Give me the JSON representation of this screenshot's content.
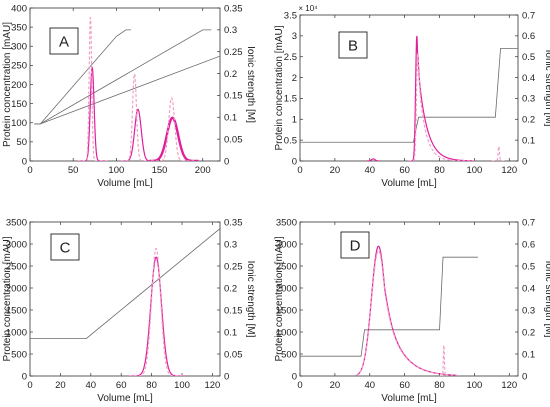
{
  "colors": {
    "gradient_line": "#6b6b6b",
    "peak_solid": "#e0209a",
    "peak_dashed": "#f0a0c8",
    "axis": "#333333"
  },
  "chart_data": [
    {
      "panel": "A",
      "type": "line",
      "xlabel": "Volume [mL]",
      "ylabel": "Protein concentration [mAU]",
      "y2label": "Ionic strength [M]",
      "xlim": [
        0,
        220
      ],
      "ylim": [
        0,
        400
      ],
      "y2lim": [
        0,
        0.35
      ],
      "xticks": [
        0,
        50,
        100,
        150,
        200
      ],
      "yticks": [
        0,
        50,
        100,
        150,
        200,
        250,
        300,
        350,
        400
      ],
      "y2ticks": [
        0,
        0.05,
        0.1,
        0.15,
        0.2,
        0.25,
        0.3,
        0.35
      ],
      "yexponent": "",
      "gradients": [
        {
          "style": "solid",
          "points": [
            [
              5,
              0.085
            ],
            [
              12,
              0.085
            ],
            [
              100,
              0.285
            ],
            [
              111,
              0.3
            ],
            [
              117,
              0.3
            ]
          ]
        },
        {
          "style": "solid",
          "points": [
            [
              5,
              0.085
            ],
            [
              12,
              0.085
            ],
            [
              200,
              0.3
            ],
            [
              210,
              0.3
            ]
          ]
        },
        {
          "style": "solid",
          "points": [
            [
              5,
              0.085
            ],
            [
              12,
              0.085
            ],
            [
              220,
              0.24
            ]
          ]
        }
      ],
      "peaks": [
        {
          "style": "solid",
          "width": 1.2,
          "center": 72,
          "height": 245,
          "sigma": 2.2,
          "xmin": 55,
          "xmax": 90
        },
        {
          "style": "dashed",
          "width": 1.2,
          "center": 70,
          "height": 375,
          "sigma": 1.5,
          "xmin": 55,
          "xmax": 90
        },
        {
          "style": "solid",
          "width": 1.2,
          "center": 125,
          "height": 135,
          "sigma": 3.8,
          "xmin": 105,
          "xmax": 145
        },
        {
          "style": "dashed",
          "width": 1.2,
          "center": 121,
          "height": 228,
          "sigma": 2.3,
          "xmin": 105,
          "xmax": 145
        },
        {
          "style": "solid",
          "width": 2.4,
          "center": 165,
          "height": 113,
          "sigma": 6.5,
          "xmin": 138,
          "xmax": 195
        },
        {
          "style": "dashed",
          "width": 1.2,
          "center": 164,
          "height": 165,
          "sigma": 3.5,
          "xmin": 140,
          "xmax": 190
        }
      ]
    },
    {
      "panel": "B",
      "type": "line",
      "xlabel": "Volume [mL]",
      "ylabel": "Protein concentration [mAU]",
      "y2label": "Ionic strength [M]",
      "xlim": [
        0,
        125
      ],
      "ylim": [
        0,
        35000
      ],
      "y2lim": [
        0,
        0.7
      ],
      "xticks": [
        0,
        20,
        40,
        60,
        80,
        100,
        120
      ],
      "yticks": [
        0,
        5000,
        10000,
        15000,
        20000,
        25000,
        30000,
        35000
      ],
      "ytick_labels": [
        "0",
        "0.5",
        "1",
        "1.5",
        "2",
        "2.5",
        "3",
        "3.5"
      ],
      "y2ticks": [
        0,
        0.1,
        0.2,
        0.3,
        0.4,
        0.5,
        0.6,
        0.7
      ],
      "yexponent": "× 10⁴",
      "gradients": [
        {
          "style": "solid",
          "points": [
            [
              0,
              0.09
            ],
            [
              65,
              0.09
            ],
            [
              68,
              0.21
            ],
            [
              112,
              0.21
            ],
            [
              115,
              0.54
            ],
            [
              125,
              0.54
            ]
          ]
        }
      ],
      "peaks": [
        {
          "style": "solid",
          "width": 1.2,
          "center": 67,
          "height": 30000,
          "sigma": 0.7,
          "tail": 5,
          "xmin": 62,
          "xmax": 100
        },
        {
          "style": "dashed",
          "width": 1.2,
          "center": 67.5,
          "height": 26000,
          "sigma": 0.7,
          "tail": 4,
          "xmin": 62,
          "xmax": 100
        },
        {
          "style": "dashed",
          "width": 1.2,
          "center": 114,
          "height": 3500,
          "sigma": 0.4,
          "xmin": 110,
          "xmax": 118
        },
        {
          "style": "solid",
          "width": 1.2,
          "center": 42,
          "height": 500,
          "sigma": 1.0,
          "xmin": 38,
          "xmax": 46
        }
      ]
    },
    {
      "panel": "C",
      "type": "line",
      "xlabel": "Volume [mL]",
      "ylabel": "Protein concentration [mAU]",
      "y2label": "Ionic strength [M]",
      "xlim": [
        0,
        125
      ],
      "ylim": [
        0,
        3500
      ],
      "y2lim": [
        0,
        0.35
      ],
      "xticks": [
        0,
        20,
        40,
        60,
        80,
        100,
        120
      ],
      "yticks": [
        0,
        500,
        1000,
        1500,
        2000,
        2500,
        3000,
        3500
      ],
      "y2ticks": [
        0,
        0.05,
        0.1,
        0.15,
        0.2,
        0.25,
        0.3,
        0.35
      ],
      "yexponent": "",
      "gradients": [
        {
          "style": "solid",
          "points": [
            [
              0,
              0.085
            ],
            [
              37,
              0.085
            ],
            [
              125,
              0.335
            ]
          ]
        }
      ],
      "peaks": [
        {
          "style": "solid",
          "width": 1.2,
          "center": 83,
          "height": 2700,
          "sigma": 3.5,
          "xmin": 65,
          "xmax": 102
        },
        {
          "style": "dashed",
          "width": 1.2,
          "center": 83,
          "height": 2900,
          "sigma": 3.0,
          "xmin": 65,
          "xmax": 102
        }
      ]
    },
    {
      "panel": "D",
      "type": "line",
      "xlabel": "Volume [mL]",
      "ylabel": "Protein concentration [mAU]",
      "y2label": "Ionic strength [M]",
      "xlim": [
        0,
        125
      ],
      "ylim": [
        0,
        3500
      ],
      "y2lim": [
        0,
        0.7
      ],
      "xticks": [
        0,
        20,
        40,
        60,
        80,
        100,
        120
      ],
      "yticks": [
        0,
        500,
        1000,
        1500,
        2000,
        2500,
        3000,
        3500
      ],
      "y2ticks": [
        0,
        0.1,
        0.2,
        0.3,
        0.4,
        0.5,
        0.6,
        0.7
      ],
      "yexponent": "",
      "gradients": [
        {
          "style": "solid",
          "points": [
            [
              0,
              0.09
            ],
            [
              35,
              0.09
            ],
            [
              37,
              0.21
            ],
            [
              80,
              0.21
            ],
            [
              82,
              0.54
            ],
            [
              102,
              0.54
            ]
          ]
        }
      ],
      "peaks": [
        {
          "style": "solid",
          "width": 1.2,
          "center": 45,
          "height": 2950,
          "sigma": 4.0,
          "tail": 9,
          "xmin": 32,
          "xmax": 90
        },
        {
          "style": "dashed",
          "width": 1.2,
          "center": 45,
          "height": 2850,
          "sigma": 4.0,
          "tail": 9,
          "xmin": 32,
          "xmax": 90
        },
        {
          "style": "dashed",
          "width": 1.2,
          "center": 82.5,
          "height": 700,
          "sigma": 0.3,
          "xmin": 80,
          "xmax": 85
        }
      ]
    }
  ]
}
